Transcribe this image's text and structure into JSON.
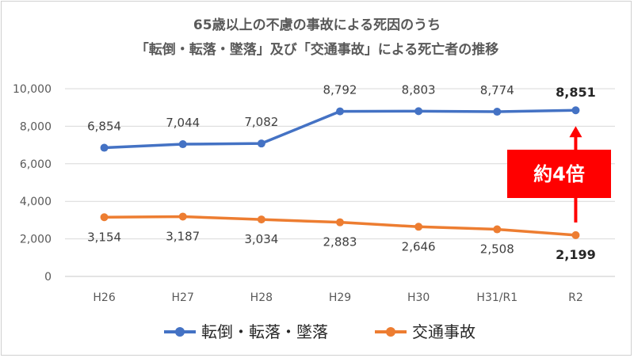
{
  "chart_data": {
    "type": "line",
    "title": "65歳以上の不慮の事故による死因のうち",
    "subtitle": "「転倒・転落・墜落」及び「交通事故」による死亡者の推移",
    "categories": [
      "H26",
      "H27",
      "H28",
      "H29",
      "H30",
      "H31/R1",
      "R2"
    ],
    "ylim": [
      0,
      10000
    ],
    "yticks": [
      "0",
      "2,000",
      "4,000",
      "6,000",
      "8,000",
      "10,000"
    ],
    "grid": true,
    "legend_position": "bottom",
    "series": [
      {
        "name": "転倒・転落・墜落",
        "color": "#4472c4",
        "values": [
          6854,
          7044,
          7082,
          8792,
          8803,
          8774,
          8851
        ],
        "labels": [
          "6,854",
          "7,044",
          "7,082",
          "8,792",
          "8,803",
          "8,774",
          "8,851"
        ]
      },
      {
        "name": "交通事故",
        "color": "#ed7d31",
        "values": [
          3154,
          3187,
          3034,
          2883,
          2646,
          2508,
          2199
        ],
        "labels": [
          "3,154",
          "3,187",
          "3,034",
          "2,883",
          "2,646",
          "2,508",
          "2,199"
        ]
      }
    ],
    "annotation": {
      "text": "約4倍",
      "color": "#ff0000",
      "background": "#ff0000",
      "text_color": "#ffffff"
    }
  }
}
